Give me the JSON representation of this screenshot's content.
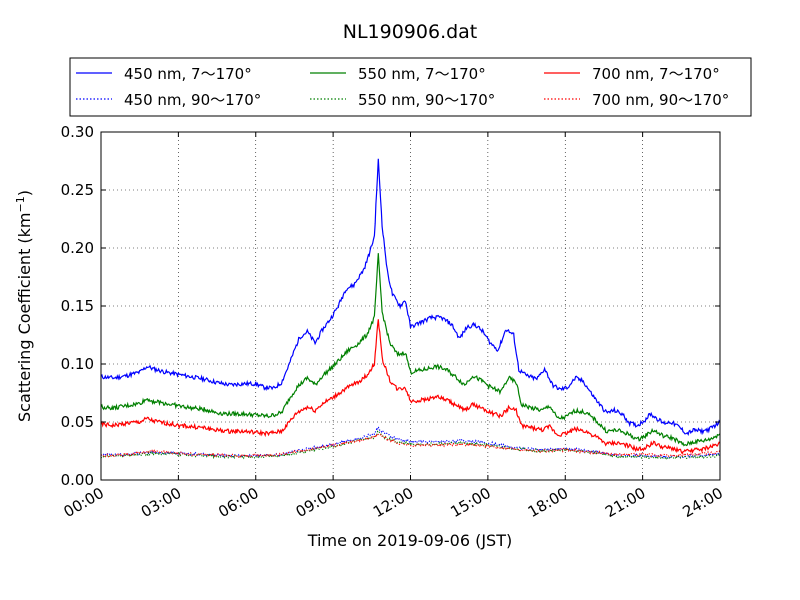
{
  "chart_data": {
    "type": "line",
    "title": "NL190906.dat",
    "xlabel": "Time on 2019-09-06 (JST)",
    "ylabel_main": "Scattering Coefficient (km",
    "ylabel_sup": "−1",
    "ylabel_tail": ")",
    "ylim": [
      0.0,
      0.3
    ],
    "xlim_hours": [
      0,
      24
    ],
    "x_ticks": [
      {
        "hour": 0,
        "label": "00:00"
      },
      {
        "hour": 3,
        "label": "03:00"
      },
      {
        "hour": 6,
        "label": "06:00"
      },
      {
        "hour": 9,
        "label": "09:00"
      },
      {
        "hour": 12,
        "label": "12:00"
      },
      {
        "hour": 15,
        "label": "15:00"
      },
      {
        "hour": 18,
        "label": "18:00"
      },
      {
        "hour": 21,
        "label": "21:00"
      },
      {
        "hour": 24,
        "label": "24:00"
      }
    ],
    "y_ticks": [
      {
        "value": 0.0,
        "label": "0.00"
      },
      {
        "value": 0.05,
        "label": "0.05"
      },
      {
        "value": 0.1,
        "label": "0.10"
      },
      {
        "value": 0.15,
        "label": "0.15"
      },
      {
        "value": 0.2,
        "label": "0.20"
      },
      {
        "value": 0.25,
        "label": "0.25"
      },
      {
        "value": 0.3,
        "label": "0.30"
      }
    ],
    "grid": true,
    "legend_position": "top",
    "series": [
      {
        "name": "450 nm, 7～170°",
        "color": "#0000ff",
        "style": "solid",
        "points": [
          [
            0,
            0.089
          ],
          [
            0.5,
            0.088
          ],
          [
            1,
            0.09
          ],
          [
            1.5,
            0.093
          ],
          [
            1.8,
            0.098
          ],
          [
            2,
            0.096
          ],
          [
            2.5,
            0.093
          ],
          [
            3,
            0.091
          ],
          [
            3.5,
            0.089
          ],
          [
            4,
            0.087
          ],
          [
            4.5,
            0.084
          ],
          [
            5,
            0.082
          ],
          [
            5.5,
            0.083
          ],
          [
            6,
            0.083
          ],
          [
            6.3,
            0.08
          ],
          [
            6.7,
            0.079
          ],
          [
            7,
            0.084
          ],
          [
            7.3,
            0.1
          ],
          [
            7.5,
            0.112
          ],
          [
            7.7,
            0.123
          ],
          [
            8,
            0.128
          ],
          [
            8.3,
            0.118
          ],
          [
            8.6,
            0.13
          ],
          [
            8.9,
            0.139
          ],
          [
            9.2,
            0.15
          ],
          [
            9.5,
            0.165
          ],
          [
            9.8,
            0.168
          ],
          [
            10,
            0.175
          ],
          [
            10.2,
            0.182
          ],
          [
            10.4,
            0.195
          ],
          [
            10.6,
            0.21
          ],
          [
            10.75,
            0.276
          ],
          [
            10.9,
            0.22
          ],
          [
            11.1,
            0.18
          ],
          [
            11.3,
            0.16
          ],
          [
            11.6,
            0.15
          ],
          [
            11.8,
            0.155
          ],
          [
            12,
            0.132
          ],
          [
            12.4,
            0.136
          ],
          [
            12.8,
            0.14
          ],
          [
            13.2,
            0.14
          ],
          [
            13.6,
            0.134
          ],
          [
            13.9,
            0.122
          ],
          [
            14.2,
            0.132
          ],
          [
            14.5,
            0.134
          ],
          [
            14.8,
            0.128
          ],
          [
            15.1,
            0.118
          ],
          [
            15.4,
            0.112
          ],
          [
            15.7,
            0.13
          ],
          [
            16,
            0.125
          ],
          [
            16.2,
            0.095
          ],
          [
            16.5,
            0.09
          ],
          [
            16.9,
            0.087
          ],
          [
            17.2,
            0.096
          ],
          [
            17.5,
            0.082
          ],
          [
            17.8,
            0.078
          ],
          [
            18.1,
            0.08
          ],
          [
            18.4,
            0.088
          ],
          [
            18.7,
            0.085
          ],
          [
            19,
            0.075
          ],
          [
            19.3,
            0.066
          ],
          [
            19.6,
            0.058
          ],
          [
            19.9,
            0.06
          ],
          [
            20.2,
            0.057
          ],
          [
            20.5,
            0.049
          ],
          [
            20.8,
            0.047
          ],
          [
            21.1,
            0.052
          ],
          [
            21.3,
            0.057
          ],
          [
            21.5,
            0.054
          ],
          [
            21.8,
            0.049
          ],
          [
            22.1,
            0.05
          ],
          [
            22.4,
            0.046
          ],
          [
            22.7,
            0.04
          ],
          [
            23,
            0.043
          ],
          [
            23.3,
            0.042
          ],
          [
            23.6,
            0.044
          ],
          [
            24,
            0.05
          ]
        ]
      },
      {
        "name": "450 nm, 90～170°",
        "color": "#0000ff",
        "style": "dotted",
        "points": [
          [
            0,
            0.022
          ],
          [
            1,
            0.022
          ],
          [
            2,
            0.024
          ],
          [
            3,
            0.023
          ],
          [
            4,
            0.022
          ],
          [
            5,
            0.021
          ],
          [
            6,
            0.021
          ],
          [
            7,
            0.022
          ],
          [
            8,
            0.027
          ],
          [
            9,
            0.031
          ],
          [
            10,
            0.036
          ],
          [
            10.6,
            0.04
          ],
          [
            10.75,
            0.045
          ],
          [
            11,
            0.04
          ],
          [
            11.5,
            0.035
          ],
          [
            12,
            0.033
          ],
          [
            13,
            0.033
          ],
          [
            14,
            0.034
          ],
          [
            15,
            0.032
          ],
          [
            16,
            0.028
          ],
          [
            17,
            0.026
          ],
          [
            18,
            0.027
          ],
          [
            19,
            0.025
          ],
          [
            20,
            0.021
          ],
          [
            21,
            0.021
          ],
          [
            22,
            0.02
          ],
          [
            23,
            0.021
          ],
          [
            24,
            0.022
          ]
        ]
      },
      {
        "name": "550 nm, 7～170°",
        "color": "#008000",
        "style": "solid",
        "points": [
          [
            0,
            0.063
          ],
          [
            0.5,
            0.062
          ],
          [
            1,
            0.064
          ],
          [
            1.5,
            0.066
          ],
          [
            1.8,
            0.07
          ],
          [
            2,
            0.068
          ],
          [
            2.5,
            0.066
          ],
          [
            3,
            0.064
          ],
          [
            3.5,
            0.062
          ],
          [
            4,
            0.061
          ],
          [
            4.5,
            0.058
          ],
          [
            5,
            0.057
          ],
          [
            5.5,
            0.057
          ],
          [
            6,
            0.056
          ],
          [
            6.5,
            0.055
          ],
          [
            7,
            0.058
          ],
          [
            7.3,
            0.07
          ],
          [
            7.6,
            0.08
          ],
          [
            8,
            0.088
          ],
          [
            8.3,
            0.082
          ],
          [
            8.6,
            0.09
          ],
          [
            9,
            0.098
          ],
          [
            9.3,
            0.105
          ],
          [
            9.6,
            0.112
          ],
          [
            10,
            0.118
          ],
          [
            10.3,
            0.125
          ],
          [
            10.6,
            0.14
          ],
          [
            10.75,
            0.194
          ],
          [
            10.9,
            0.145
          ],
          [
            11.2,
            0.118
          ],
          [
            11.5,
            0.108
          ],
          [
            11.8,
            0.11
          ],
          [
            12,
            0.093
          ],
          [
            12.5,
            0.095
          ],
          [
            13,
            0.098
          ],
          [
            13.4,
            0.095
          ],
          [
            13.8,
            0.088
          ],
          [
            14.1,
            0.082
          ],
          [
            14.4,
            0.09
          ],
          [
            14.8,
            0.085
          ],
          [
            15.1,
            0.08
          ],
          [
            15.5,
            0.076
          ],
          [
            15.8,
            0.088
          ],
          [
            16.1,
            0.084
          ],
          [
            16.3,
            0.065
          ],
          [
            16.7,
            0.062
          ],
          [
            17.1,
            0.06
          ],
          [
            17.4,
            0.064
          ],
          [
            17.7,
            0.053
          ],
          [
            18,
            0.054
          ],
          [
            18.4,
            0.06
          ],
          [
            18.8,
            0.058
          ],
          [
            19.2,
            0.051
          ],
          [
            19.6,
            0.042
          ],
          [
            20,
            0.043
          ],
          [
            20.4,
            0.04
          ],
          [
            20.8,
            0.035
          ],
          [
            21.1,
            0.038
          ],
          [
            21.4,
            0.043
          ],
          [
            21.8,
            0.038
          ],
          [
            22.2,
            0.036
          ],
          [
            22.6,
            0.03
          ],
          [
            23,
            0.033
          ],
          [
            23.4,
            0.034
          ],
          [
            23.7,
            0.036
          ],
          [
            24,
            0.04
          ]
        ]
      },
      {
        "name": "550 nm, 90～170°",
        "color": "#008000",
        "style": "dotted",
        "points": [
          [
            0,
            0.02
          ],
          [
            1,
            0.021
          ],
          [
            2,
            0.023
          ],
          [
            3,
            0.022
          ],
          [
            4,
            0.021
          ],
          [
            5,
            0.02
          ],
          [
            6,
            0.02
          ],
          [
            7,
            0.021
          ],
          [
            8,
            0.025
          ],
          [
            9,
            0.029
          ],
          [
            10,
            0.034
          ],
          [
            10.6,
            0.037
          ],
          [
            10.75,
            0.042
          ],
          [
            11,
            0.037
          ],
          [
            11.5,
            0.033
          ],
          [
            12,
            0.031
          ],
          [
            13,
            0.031
          ],
          [
            14,
            0.032
          ],
          [
            15,
            0.03
          ],
          [
            16,
            0.027
          ],
          [
            17,
            0.025
          ],
          [
            18,
            0.026
          ],
          [
            19,
            0.024
          ],
          [
            20,
            0.02
          ],
          [
            21,
            0.02
          ],
          [
            22,
            0.019
          ],
          [
            23,
            0.02
          ],
          [
            24,
            0.021
          ]
        ]
      },
      {
        "name": "700 nm, 7～170°",
        "color": "#ff0000",
        "style": "solid",
        "points": [
          [
            0,
            0.048
          ],
          [
            0.5,
            0.047
          ],
          [
            1,
            0.049
          ],
          [
            1.5,
            0.05
          ],
          [
            1.8,
            0.053
          ],
          [
            2,
            0.051
          ],
          [
            2.5,
            0.049
          ],
          [
            3,
            0.047
          ],
          [
            3.5,
            0.046
          ],
          [
            4,
            0.045
          ],
          [
            4.5,
            0.043
          ],
          [
            5,
            0.042
          ],
          [
            5.5,
            0.042
          ],
          [
            6,
            0.041
          ],
          [
            6.5,
            0.04
          ],
          [
            7,
            0.042
          ],
          [
            7.3,
            0.05
          ],
          [
            7.6,
            0.058
          ],
          [
            8,
            0.063
          ],
          [
            8.3,
            0.06
          ],
          [
            8.6,
            0.066
          ],
          [
            9,
            0.071
          ],
          [
            9.3,
            0.076
          ],
          [
            9.6,
            0.08
          ],
          [
            10,
            0.085
          ],
          [
            10.3,
            0.09
          ],
          [
            10.6,
            0.1
          ],
          [
            10.75,
            0.14
          ],
          [
            10.9,
            0.105
          ],
          [
            11.2,
            0.086
          ],
          [
            11.5,
            0.078
          ],
          [
            11.8,
            0.08
          ],
          [
            12,
            0.068
          ],
          [
            12.5,
            0.069
          ],
          [
            13,
            0.072
          ],
          [
            13.4,
            0.069
          ],
          [
            13.8,
            0.064
          ],
          [
            14.1,
            0.06
          ],
          [
            14.4,
            0.065
          ],
          [
            14.8,
            0.062
          ],
          [
            15.1,
            0.058
          ],
          [
            15.5,
            0.055
          ],
          [
            15.8,
            0.062
          ],
          [
            16.1,
            0.06
          ],
          [
            16.3,
            0.047
          ],
          [
            16.7,
            0.045
          ],
          [
            17.1,
            0.043
          ],
          [
            17.4,
            0.046
          ],
          [
            17.7,
            0.039
          ],
          [
            18,
            0.04
          ],
          [
            18.4,
            0.044
          ],
          [
            18.8,
            0.042
          ],
          [
            19.2,
            0.037
          ],
          [
            19.6,
            0.031
          ],
          [
            20,
            0.032
          ],
          [
            20.4,
            0.03
          ],
          [
            20.8,
            0.026
          ],
          [
            21.1,
            0.028
          ],
          [
            21.4,
            0.032
          ],
          [
            21.8,
            0.028
          ],
          [
            22.2,
            0.027
          ],
          [
            22.6,
            0.024
          ],
          [
            23,
            0.026
          ],
          [
            23.4,
            0.027
          ],
          [
            23.7,
            0.029
          ],
          [
            24,
            0.032
          ]
        ]
      },
      {
        "name": "700 nm, 90～170°",
        "color": "#ff0000",
        "style": "dotted",
        "points": [
          [
            0,
            0.021
          ],
          [
            1,
            0.022
          ],
          [
            2,
            0.025
          ],
          [
            3,
            0.023
          ],
          [
            4,
            0.022
          ],
          [
            5,
            0.021
          ],
          [
            6,
            0.021
          ],
          [
            7,
            0.022
          ],
          [
            8,
            0.026
          ],
          [
            9,
            0.03
          ],
          [
            10,
            0.034
          ],
          [
            10.6,
            0.037
          ],
          [
            10.75,
            0.04
          ],
          [
            11,
            0.036
          ],
          [
            11.5,
            0.032
          ],
          [
            12,
            0.03
          ],
          [
            13,
            0.03
          ],
          [
            14,
            0.031
          ],
          [
            15,
            0.029
          ],
          [
            16,
            0.027
          ],
          [
            17,
            0.025
          ],
          [
            18,
            0.026
          ],
          [
            19,
            0.024
          ],
          [
            20,
            0.022
          ],
          [
            21,
            0.022
          ],
          [
            22,
            0.021
          ],
          [
            23,
            0.022
          ],
          [
            24,
            0.024
          ]
        ]
      }
    ]
  }
}
